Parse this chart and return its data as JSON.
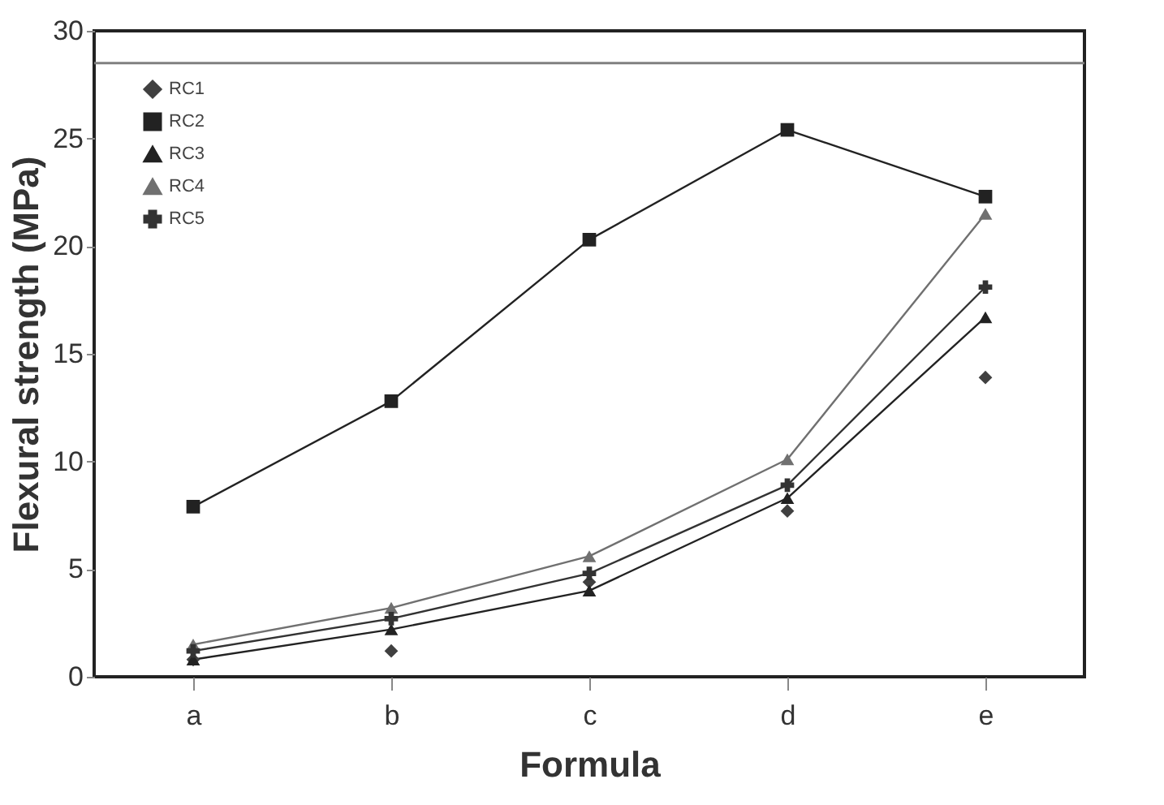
{
  "chart_data": {
    "type": "line",
    "xlabel": "Formula",
    "ylabel": "Flexural strength (MPa)",
    "categories": [
      "a",
      "b",
      "c",
      "d",
      "e"
    ],
    "ylim": [
      0,
      30
    ],
    "yticks": [
      0,
      5,
      10,
      15,
      20,
      25,
      30
    ],
    "grid": false,
    "legend": "top left",
    "line_style": "solid",
    "ref_lines": [
      {
        "axis": "y",
        "value": 28.5,
        "color": "#808080"
      }
    ],
    "series": [
      {
        "name": "RC1",
        "type": "scatter",
        "marker": "diamond",
        "color": "#404040",
        "values": [
          0.8,
          1.2,
          4.4,
          7.7,
          13.9
        ]
      },
      {
        "name": "RC2",
        "type": "line",
        "marker": "square",
        "color": "#222222",
        "values": [
          7.9,
          12.8,
          20.3,
          25.4,
          22.3
        ]
      },
      {
        "name": "RC3",
        "type": "line",
        "marker": "triangle",
        "color": "#222222",
        "values": [
          0.8,
          2.2,
          4.0,
          8.3,
          16.7
        ]
      },
      {
        "name": "RC4",
        "type": "line",
        "marker": "triangle",
        "color": "#707070",
        "values": [
          1.5,
          3.2,
          5.6,
          10.1,
          21.5
        ]
      },
      {
        "name": "RC5",
        "type": "line",
        "marker": "cross",
        "color": "#333333",
        "values": [
          1.2,
          2.7,
          4.8,
          8.9,
          18.1
        ]
      }
    ]
  }
}
